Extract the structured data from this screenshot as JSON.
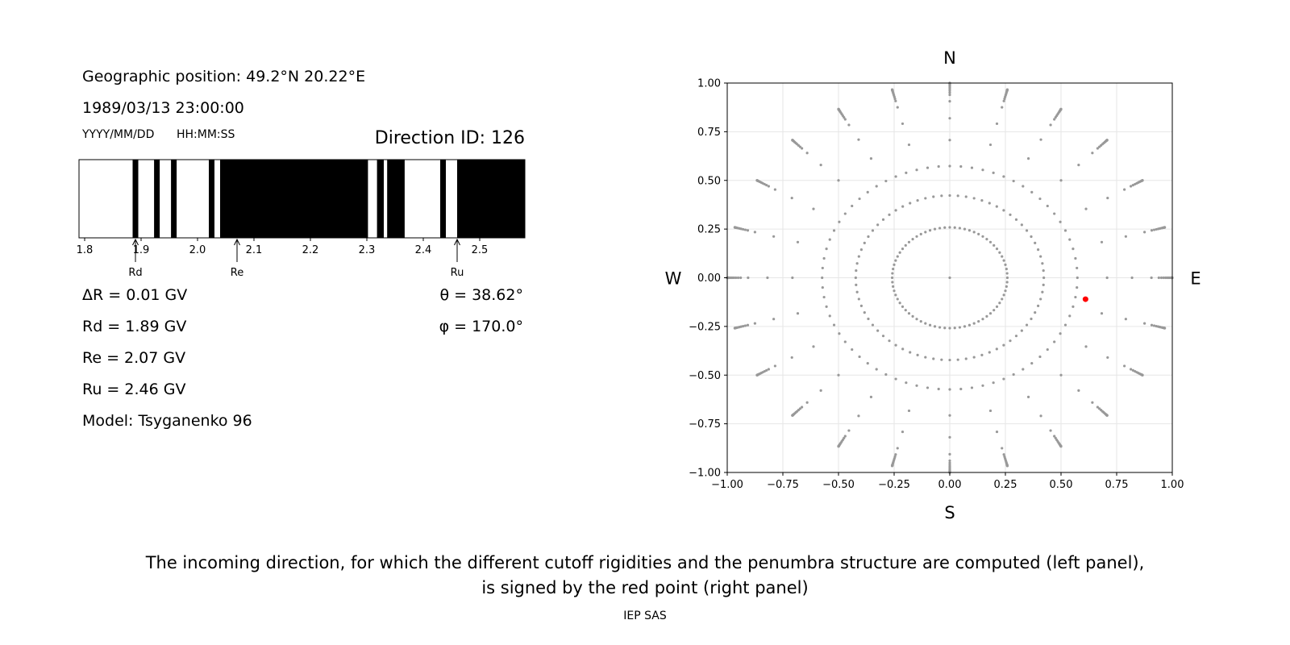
{
  "left_panel": {
    "geo_position": "Geographic position: 49.2°N 20.22°E",
    "datetime": "1989/03/13 23:00:00",
    "date_format_label": "YYYY/MM/DD",
    "time_format_label": "HH:MM:SS",
    "direction_id": "Direction ID: 126",
    "delta_r": "ΔR = 0.01 GV",
    "rd": "Rd = 1.89 GV",
    "re": "Re = 2.07 GV",
    "ru": "Ru = 2.46 GV",
    "model": "Model: Tsyganenko 96",
    "theta": "θ = 38.62°",
    "phi": "φ = 170.0°"
  },
  "right_panel": {
    "north": "N",
    "south": "S",
    "west": "W",
    "east": "E"
  },
  "caption": {
    "line1": "The incoming direction, for which the different cutoff rigidities and the penumbra structure are computed (left panel),",
    "line2": "is signed by the red point (right panel)"
  },
  "footer": "IEP SAS",
  "colors": {
    "allowed": "#ffffff",
    "forbidden": "#000000",
    "grid_points": "#999999",
    "selected_point": "#ff0000",
    "grid_lines": "#e6e6e6"
  },
  "chart_data": [
    {
      "type": "penumbra-bar",
      "xlim": [
        1.79,
        2.58
      ],
      "ticks": [
        1.8,
        1.9,
        2.0,
        2.1,
        2.2,
        2.3,
        2.4,
        2.5
      ],
      "tick_labels": [
        "1.8",
        "1.9",
        "2.0",
        "2.1",
        "2.2",
        "2.3",
        "2.4",
        "2.5"
      ],
      "forbidden_bands": [
        [
          1.885,
          1.895
        ],
        [
          1.923,
          1.933
        ],
        [
          1.953,
          1.963
        ],
        [
          2.02,
          2.03
        ],
        [
          2.04,
          2.302
        ],
        [
          2.318,
          2.33
        ],
        [
          2.336,
          2.367
        ],
        [
          2.43,
          2.44
        ],
        [
          2.46,
          2.58
        ]
      ],
      "markers": [
        {
          "name": "Rd",
          "value": 1.89
        },
        {
          "name": "Re",
          "value": 2.07
        },
        {
          "name": "Ru",
          "value": 2.46
        }
      ]
    },
    {
      "type": "scatter",
      "xlim": [
        -1,
        1
      ],
      "ylim": [
        -1,
        1
      ],
      "xticks": [
        -1.0,
        -0.75,
        -0.5,
        -0.25,
        0.0,
        0.25,
        0.5,
        0.75,
        1.0
      ],
      "yticks": [
        -1.0,
        -0.75,
        -0.5,
        -0.25,
        0.0,
        0.25,
        0.5,
        0.75,
        1.0
      ],
      "xtick_labels": [
        "−1.00",
        "−0.75",
        "−0.50",
        "−0.25",
        "0.00",
        "0.25",
        "0.50",
        "0.75",
        "1.00"
      ],
      "ytick_labels": [
        "−1.00",
        "−0.75",
        "−0.50",
        "−0.25",
        "0.00",
        "0.25",
        "0.50",
        "0.75",
        "1.00"
      ],
      "grid": true,
      "direction_grid": {
        "theta_degrees": [
          0,
          15,
          25,
          35,
          45,
          55,
          65,
          70,
          72,
          74,
          76,
          78,
          80,
          82,
          84,
          85,
          86,
          87,
          88,
          89,
          90
        ],
        "azimuths_per_ring": 24,
        "azimuth_step_degrees": 15,
        "rings_all_azimuths": 3,
        "zenith_point": true
      },
      "selected_point": {
        "theta": 38.62,
        "phi": 170.0,
        "x": 0.61,
        "y": -0.11
      }
    }
  ]
}
